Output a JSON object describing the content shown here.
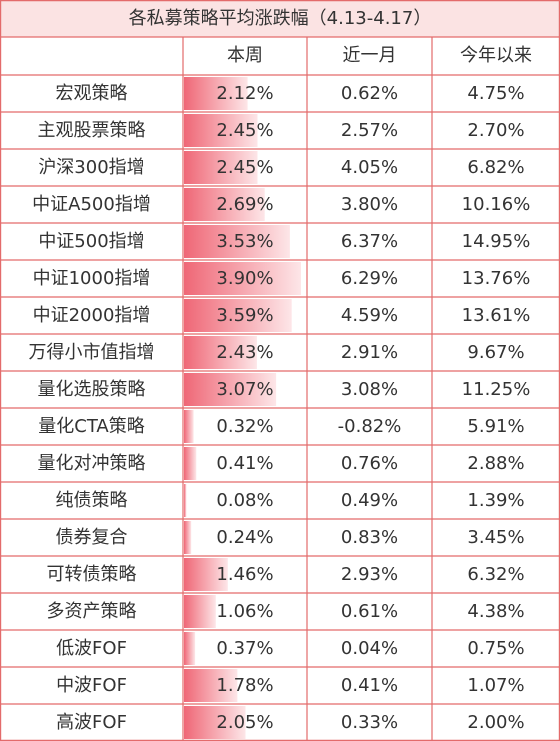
{
  "title": "各私募策略平均涨跌幅（4.13-4.17）",
  "table": {
    "header": [
      "本周",
      "近一月",
      "今年以来"
    ],
    "rows": [
      [
        "宏观策略",
        "2.12%",
        "0.62%",
        "4.75%"
      ],
      [
        "主观股票策略",
        "2.45%",
        "2.57%",
        "2.70%"
      ],
      [
        "沪深300指增",
        "2.45%",
        "4.05%",
        "6.82%"
      ],
      [
        "中证A500指增",
        "2.69%",
        "3.80%",
        "10.16%"
      ],
      [
        "中证500指增",
        "3.53%",
        "6.37%",
        "14.95%"
      ],
      [
        "中证1000指增",
        "3.90%",
        "6.29%",
        "13.76%"
      ],
      [
        "中证2000指增",
        "3.59%",
        "4.59%",
        "13.61%"
      ],
      [
        "万得小市值指增",
        "2.43%",
        "2.91%",
        "9.67%"
      ],
      [
        "量化选股策略",
        "3.07%",
        "3.08%",
        "11.25%"
      ],
      [
        "量化CTA策略",
        "0.32%",
        "-0.82%",
        "5.91%"
      ],
      [
        "量化对冲策略",
        "0.41%",
        "0.76%",
        "2.88%"
      ],
      [
        "纯债策略",
        "0.08%",
        "0.49%",
        "1.39%"
      ],
      [
        "债券复合",
        "0.24%",
        "0.83%",
        "3.45%"
      ],
      [
        "可转债策略",
        "1.46%",
        "2.93%",
        "6.32%"
      ],
      [
        "多资产策略",
        "1.06%",
        "0.61%",
        "4.38%"
      ],
      [
        "低波FOF",
        "0.37%",
        "0.04%",
        "0.75%"
      ],
      [
        "中波FOF",
        "1.78%",
        "0.41%",
        "1.07%"
      ],
      [
        "高波FOF",
        "2.05%",
        "0.33%",
        "2.00%"
      ]
    ]
  }
}
